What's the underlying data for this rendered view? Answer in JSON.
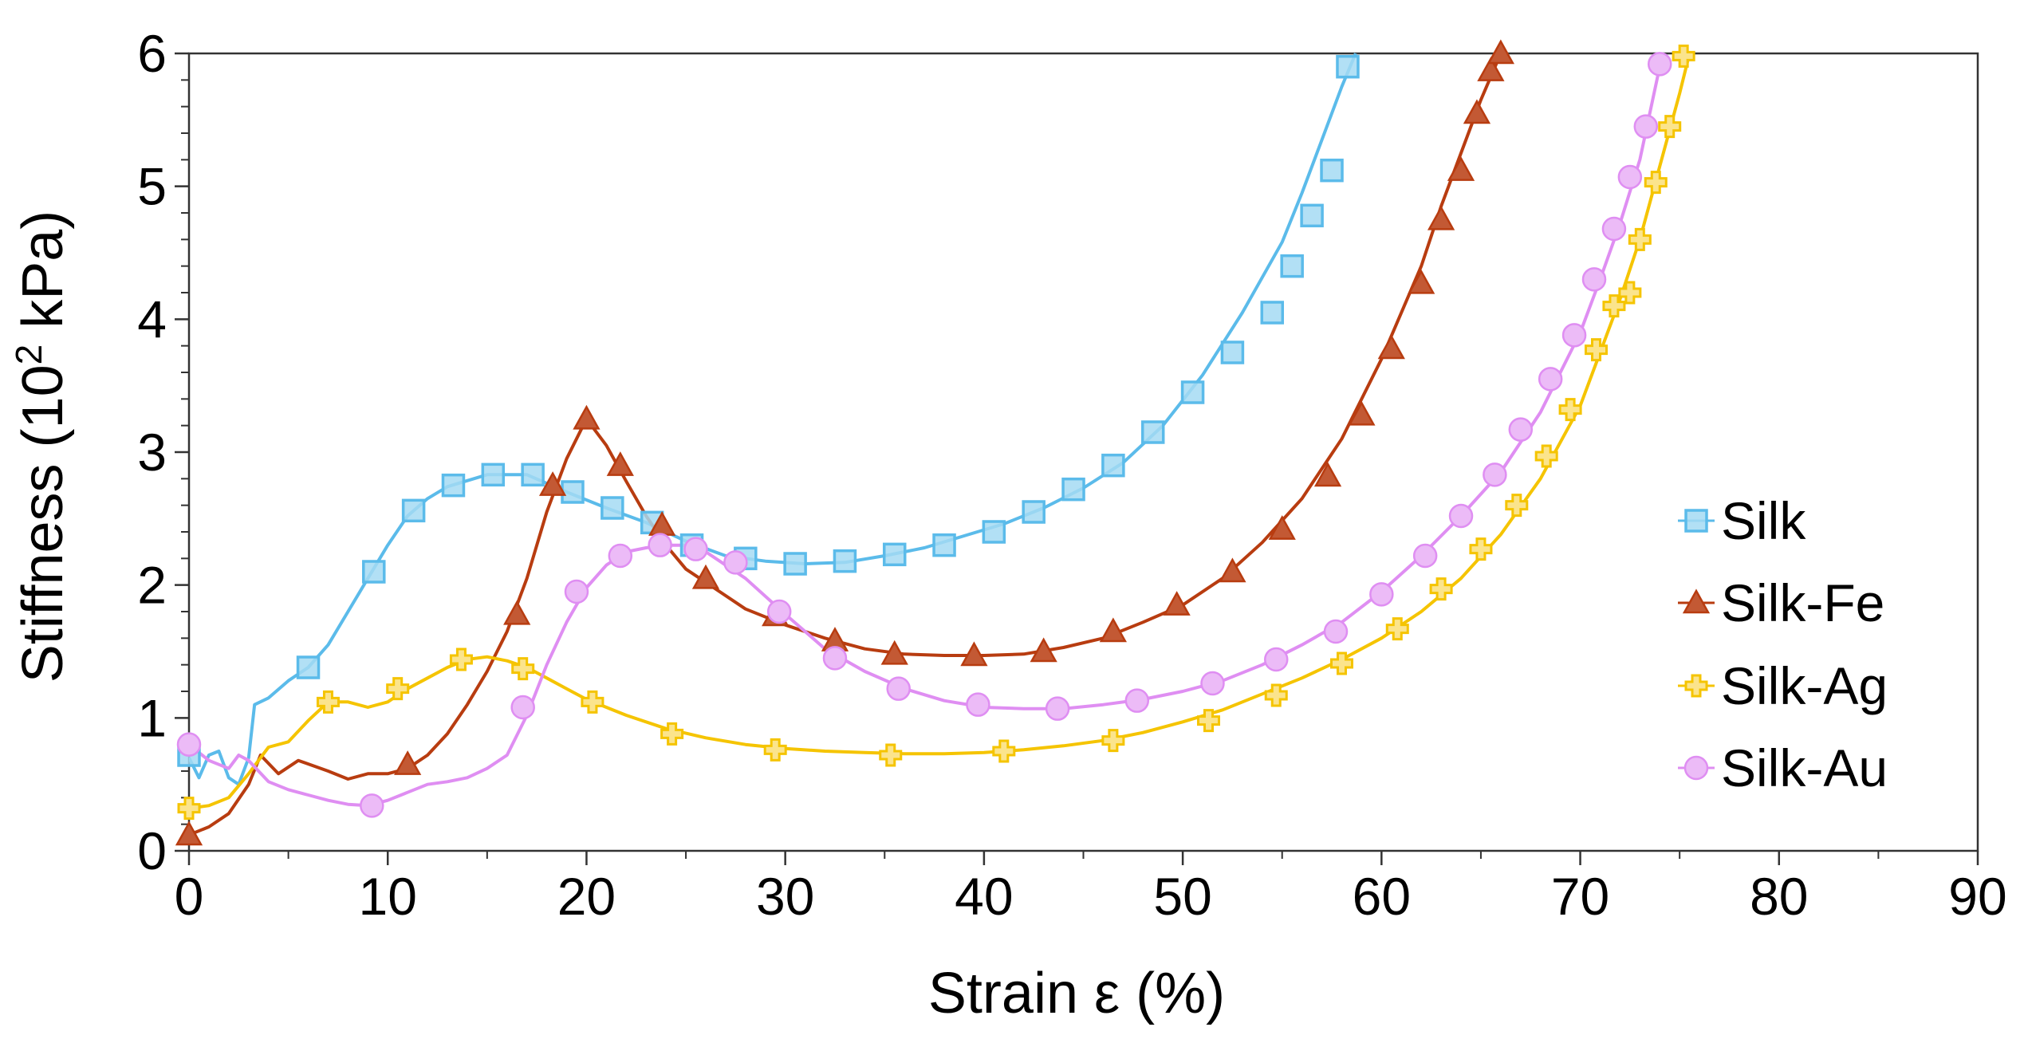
{
  "chart_data": {
    "type": "line",
    "title": "",
    "xlabel": "Strain  ε  (%)",
    "ylabel_parts": [
      "Stiffness (10",
      "2",
      " kPa)"
    ],
    "xlim": [
      0,
      90
    ],
    "ylim": [
      0,
      6
    ],
    "xticks": [
      "0",
      "10",
      "20",
      "30",
      "40",
      "50",
      "60",
      "70",
      "80",
      "90"
    ],
    "yticks": [
      "0",
      "1",
      "2",
      "3",
      "4",
      "5",
      "6"
    ],
    "legend_position": "right",
    "series": [
      {
        "name": "Silk",
        "color": "#5bbbea",
        "marker": "square",
        "line_x": [
          0,
          0.5,
          1,
          1.5,
          2,
          2.5,
          3,
          3.3,
          4,
          5,
          6,
          7,
          8,
          9,
          10,
          11,
          12,
          13,
          15,
          17,
          19,
          21,
          23,
          25,
          27,
          29,
          31,
          33,
          35,
          37,
          39,
          41,
          43,
          45,
          47,
          49,
          51,
          53,
          55,
          56,
          57,
          58,
          58.7
        ],
        "line_y": [
          0.7,
          0.55,
          0.72,
          0.75,
          0.55,
          0.5,
          0.7,
          1.1,
          1.15,
          1.28,
          1.38,
          1.55,
          1.8,
          2.05,
          2.3,
          2.52,
          2.65,
          2.74,
          2.83,
          2.83,
          2.7,
          2.58,
          2.47,
          2.33,
          2.22,
          2.18,
          2.16,
          2.17,
          2.22,
          2.28,
          2.37,
          2.46,
          2.58,
          2.73,
          2.92,
          3.2,
          3.58,
          4.05,
          4.58,
          4.95,
          5.35,
          5.75,
          6.0
        ],
        "markers_x": [
          0,
          6,
          9.3,
          11.3,
          13.3,
          15.3,
          17.3,
          19.3,
          21.3,
          23.3,
          25.3,
          28,
          30.5,
          33,
          35.5,
          38,
          40.5,
          42.5,
          44.5,
          46.5,
          48.5,
          50.5,
          52.5,
          54.5,
          55.5,
          56.5,
          57.5,
          58.3
        ],
        "markers_y": [
          0.72,
          1.38,
          2.1,
          2.56,
          2.75,
          2.83,
          2.83,
          2.7,
          2.58,
          2.47,
          2.3,
          2.2,
          2.16,
          2.18,
          2.23,
          2.3,
          2.4,
          2.55,
          2.72,
          2.9,
          3.15,
          3.45,
          3.75,
          4.05,
          4.4,
          4.78,
          5.12,
          5.9
        ]
      },
      {
        "name": "Silk-Fe",
        "color": "#b83c10",
        "marker": "triangle",
        "line_x": [
          0,
          1,
          2,
          3,
          3.6,
          4.5,
          5.5,
          7,
          8,
          9,
          10,
          11,
          12,
          13,
          14,
          15,
          16,
          17,
          18,
          19,
          20,
          21,
          22,
          23,
          24,
          25,
          26,
          28,
          30,
          32,
          34,
          36,
          38,
          40,
          42,
          44,
          46,
          48,
          50,
          52,
          54,
          56,
          58,
          60,
          62,
          63,
          64,
          65,
          66
        ],
        "line_y": [
          0.12,
          0.18,
          0.28,
          0.5,
          0.72,
          0.58,
          0.68,
          0.6,
          0.54,
          0.58,
          0.58,
          0.62,
          0.72,
          0.88,
          1.1,
          1.35,
          1.65,
          2.05,
          2.55,
          2.95,
          3.25,
          3.05,
          2.78,
          2.52,
          2.3,
          2.12,
          2.02,
          1.82,
          1.7,
          1.6,
          1.52,
          1.48,
          1.47,
          1.47,
          1.48,
          1.53,
          1.6,
          1.72,
          1.85,
          2.05,
          2.32,
          2.65,
          3.1,
          3.7,
          4.4,
          4.85,
          5.25,
          5.65,
          6.0
        ],
        "markers_x": [
          0,
          11,
          16.5,
          18.3,
          20,
          21.7,
          23.8,
          26,
          29.5,
          32.5,
          35.5,
          39.5,
          43,
          46.5,
          49.7,
          52.5,
          55,
          57.3,
          59,
          60.5,
          62,
          63,
          64,
          64.8,
          65.5,
          66
        ],
        "markers_y": [
          0.12,
          0.65,
          1.78,
          2.75,
          3.25,
          2.9,
          2.45,
          2.05,
          1.77,
          1.58,
          1.48,
          1.47,
          1.5,
          1.65,
          1.85,
          2.1,
          2.42,
          2.82,
          3.28,
          3.78,
          4.27,
          4.75,
          5.12,
          5.55,
          5.87,
          6.0
        ]
      },
      {
        "name": "Silk-Ag",
        "color": "#f5c400",
        "marker": "plus",
        "line_x": [
          0,
          1,
          2,
          3,
          4,
          5,
          6,
          7,
          8,
          9,
          10,
          11,
          12,
          13,
          14,
          15,
          16,
          17,
          18,
          19,
          20,
          22,
          24,
          26,
          28,
          30,
          32,
          34,
          36,
          38,
          40,
          42,
          44,
          46,
          48,
          50,
          52,
          54,
          56,
          58,
          60,
          62,
          64,
          66,
          68,
          70,
          71,
          72,
          73,
          74,
          75,
          75.5
        ],
        "line_y": [
          0.32,
          0.34,
          0.4,
          0.58,
          0.78,
          0.82,
          0.98,
          1.12,
          1.12,
          1.08,
          1.12,
          1.22,
          1.3,
          1.38,
          1.44,
          1.46,
          1.43,
          1.38,
          1.3,
          1.22,
          1.14,
          1.02,
          0.92,
          0.85,
          0.8,
          0.77,
          0.75,
          0.74,
          0.73,
          0.73,
          0.74,
          0.76,
          0.79,
          0.83,
          0.89,
          0.97,
          1.06,
          1.18,
          1.3,
          1.44,
          1.6,
          1.8,
          2.05,
          2.38,
          2.8,
          3.35,
          3.75,
          4.15,
          4.6,
          5.15,
          5.7,
          6.0
        ],
        "markers_x": [
          0,
          7,
          10.5,
          13.7,
          16.8,
          20.3,
          24.3,
          29.5,
          35.3,
          41,
          46.5,
          51.3,
          54.7,
          58,
          60.8,
          63,
          65,
          66.8,
          68.3,
          69.5,
          70.8,
          71.7,
          72.5,
          73,
          73.8,
          74.5,
          75.2
        ],
        "markers_y": [
          0.32,
          1.12,
          1.22,
          1.44,
          1.37,
          1.12,
          0.88,
          0.76,
          0.72,
          0.75,
          0.83,
          0.98,
          1.17,
          1.41,
          1.67,
          1.97,
          2.27,
          2.6,
          2.97,
          3.32,
          3.77,
          4.1,
          4.2,
          4.6,
          5.03,
          5.45,
          5.98
        ]
      },
      {
        "name": "Silk-Au",
        "color": "#df8ef2",
        "marker": "circle",
        "line_x": [
          0,
          1,
          2,
          2.5,
          3,
          3.5,
          4,
          5,
          6,
          7,
          8,
          9,
          10,
          11,
          12,
          13,
          14,
          15,
          16,
          17,
          18,
          19,
          20,
          21,
          22,
          23,
          24,
          25,
          26,
          28,
          30,
          32,
          34,
          36,
          38,
          40,
          42,
          44,
          46,
          48,
          50,
          52,
          54,
          56,
          58,
          60,
          62,
          64,
          66,
          68,
          70,
          71,
          72,
          73,
          74
        ],
        "line_y": [
          0.8,
          0.68,
          0.62,
          0.72,
          0.68,
          0.6,
          0.52,
          0.46,
          0.42,
          0.38,
          0.35,
          0.34,
          0.38,
          0.44,
          0.5,
          0.52,
          0.55,
          0.62,
          0.72,
          1.02,
          1.4,
          1.72,
          1.98,
          2.15,
          2.25,
          2.28,
          2.3,
          2.3,
          2.25,
          2.05,
          1.78,
          1.52,
          1.35,
          1.22,
          1.13,
          1.08,
          1.07,
          1.07,
          1.1,
          1.14,
          1.2,
          1.28,
          1.4,
          1.55,
          1.72,
          1.95,
          2.22,
          2.52,
          2.85,
          3.3,
          3.9,
          4.3,
          4.72,
          5.2,
          5.9
        ],
        "markers_x": [
          0,
          9.2,
          16.8,
          19.5,
          21.7,
          23.7,
          25.5,
          27.5,
          29.7,
          32.5,
          35.7,
          39.7,
          43.7,
          47.7,
          51.5,
          54.7,
          57.7,
          60,
          62.2,
          64,
          65.7,
          67,
          68.5,
          69.7,
          70.7,
          71.7,
          72.5,
          73.3,
          74
        ],
        "markers_y": [
          0.8,
          0.34,
          1.08,
          1.95,
          2.22,
          2.3,
          2.27,
          2.17,
          1.8,
          1.45,
          1.22,
          1.1,
          1.07,
          1.13,
          1.26,
          1.44,
          1.65,
          1.93,
          2.22,
          2.52,
          2.83,
          3.17,
          3.55,
          3.88,
          4.3,
          4.68,
          5.07,
          5.45,
          5.92
        ]
      }
    ]
  }
}
